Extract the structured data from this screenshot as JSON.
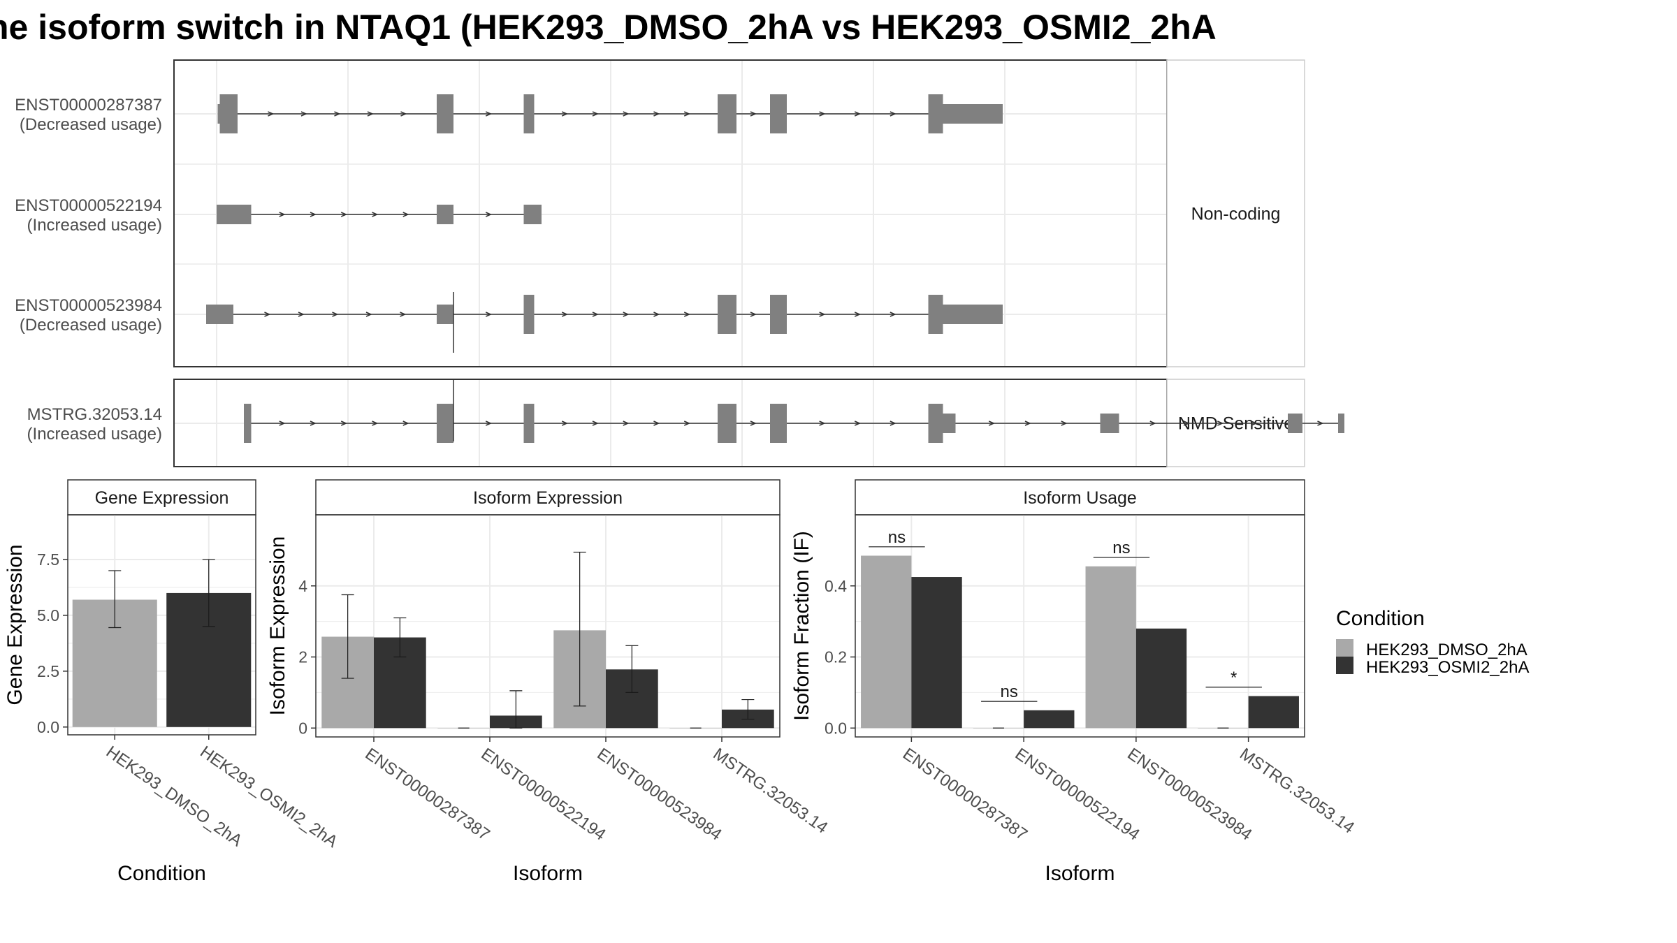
{
  "title": "he isoform switch in NTAQ1 (HEK293_DMSO_2hA vs HEK293_OSMI2_2hA",
  "colors": {
    "dmso": "#a9a9a9",
    "osmi": "#333333",
    "exon": "#808080",
    "grid": "#ebebeb",
    "frame": "#333333",
    "strip": "#ffffff"
  },
  "chart_data": [
    {
      "type": "gene-structure",
      "panels": [
        {
          "category": "Non-coding",
          "isoforms": [
            {
              "id": "ENST00000287387",
              "usage": "(Decreased usage)",
              "exons": [
                [
                  0.1,
                  0.3,
                  "thin"
                ],
                [
                  0.3,
                  2.0,
                  "thick"
                ],
                [
                  21.0,
                  22.6,
                  "thick"
                ],
                [
                  29.3,
                  30.3,
                  "thick"
                ],
                [
                  47.8,
                  49.6,
                  "thick"
                ],
                [
                  52.8,
                  54.4,
                  "thick"
                ],
                [
                  67.9,
                  69.3,
                  "thick"
                ],
                [
                  69.3,
                  75.0,
                  "thin"
                ]
              ]
            },
            {
              "id": "ENST00000522194",
              "usage": "(Increased usage)",
              "exons": [
                [
                  0.0,
                  3.3,
                  "thin"
                ],
                [
                  21.0,
                  22.6,
                  "thin"
                ],
                [
                  29.3,
                  31.0,
                  "thin"
                ]
              ]
            },
            {
              "id": "ENST00000523984",
              "usage": "(Decreased usage)",
              "exons": [
                [
                  -1.0,
                  1.6,
                  "thin"
                ],
                [
                  21.0,
                  22.6,
                  "thin"
                ],
                [
                  29.3,
                  30.3,
                  "thick"
                ],
                [
                  47.8,
                  49.6,
                  "thick"
                ],
                [
                  52.8,
                  54.4,
                  "thick"
                ],
                [
                  67.9,
                  69.3,
                  "thick"
                ],
                [
                  69.3,
                  75.0,
                  "thin"
                ]
              ]
            }
          ]
        },
        {
          "category": "NMD Sensitive",
          "isoforms": [
            {
              "id": "MSTRG.32053.14",
              "usage": "(Increased usage)",
              "exons": [
                [
                  2.6,
                  3.3,
                  "thick"
                ],
                [
                  21.0,
                  22.6,
                  "thick"
                ],
                [
                  29.3,
                  30.3,
                  "thick"
                ],
                [
                  47.8,
                  49.6,
                  "thick"
                ],
                [
                  52.8,
                  54.4,
                  "thick"
                ],
                [
                  67.9,
                  69.3,
                  "thick"
                ],
                [
                  69.3,
                  70.5,
                  "thin"
                ],
                [
                  84.3,
                  86.1,
                  "thin"
                ],
                [
                  102.2,
                  103.6,
                  "thin"
                ],
                [
                  107.0,
                  107.6,
                  "thin"
                ]
              ]
            }
          ]
        }
      ]
    },
    {
      "type": "bar",
      "title": "Gene Expression",
      "xlabel": "Condition",
      "ylabel": "Gene Expression",
      "categories": [
        "HEK293_DMSO_2hA",
        "HEK293_OSMI2_2hA"
      ],
      "values": [
        5.7,
        6.0
      ],
      "error_low": [
        4.45,
        4.5
      ],
      "error_high": [
        7.0,
        7.5
      ],
      "ylim": [
        -0.35,
        9.5
      ],
      "yticks": [
        0.0,
        2.5,
        5.0,
        7.5
      ],
      "ytick_labels": [
        "0.0",
        "2.5",
        "5.0",
        "7.5"
      ]
    },
    {
      "type": "bar",
      "title": "Isoform Expression",
      "xlabel": "Isoform",
      "ylabel": "Isoform Expression",
      "categories": [
        "ENST00000287387",
        "ENST00000522194",
        "ENST00000523984",
        "MSTRG.32053.14"
      ],
      "series": [
        {
          "name": "HEK293_DMSO_2hA",
          "values": [
            2.57,
            0.0,
            2.75,
            0.0
          ],
          "error_low": [
            1.4,
            0.0,
            0.62,
            0.0
          ],
          "error_high": [
            3.75,
            0.0,
            4.95,
            0.0
          ]
        },
        {
          "name": "HEK293_OSMI2_2hA",
          "values": [
            2.55,
            0.35,
            1.65,
            0.52
          ],
          "error_low": [
            2.0,
            0.0,
            1.0,
            0.25
          ],
          "error_high": [
            3.1,
            1.05,
            2.32,
            0.8
          ]
        }
      ],
      "ylim": [
        -0.25,
        6.0
      ],
      "yticks": [
        0,
        2,
        4
      ],
      "ytick_labels": [
        "0",
        "2",
        "4"
      ]
    },
    {
      "type": "bar",
      "title": "Isoform Usage",
      "xlabel": "Isoform",
      "ylabel": "Isoform Fraction (IF)",
      "categories": [
        "ENST00000287387",
        "ENST00000522194",
        "ENST00000523984",
        "MSTRG.32053.14"
      ],
      "series": [
        {
          "name": "HEK293_DMSO_2hA",
          "values": [
            0.485,
            0.0,
            0.455,
            0.0
          ]
        },
        {
          "name": "HEK293_OSMI2_2hA",
          "values": [
            0.425,
            0.05,
            0.28,
            0.09
          ]
        }
      ],
      "significance": [
        {
          "label": "ns",
          "y": 0.51
        },
        {
          "label": "ns",
          "y": 0.075
        },
        {
          "label": "ns",
          "y": 0.48
        },
        {
          "label": "*",
          "y": 0.115
        }
      ],
      "ylim": [
        -0.025,
        0.6
      ],
      "yticks": [
        0.0,
        0.2,
        0.4
      ],
      "ytick_labels": [
        "0.0",
        "0.2",
        "0.4"
      ]
    }
  ],
  "legend": {
    "title": "Condition",
    "items": [
      {
        "label": "HEK293_DMSO_2hA",
        "color": "#a9a9a9"
      },
      {
        "label": "HEK293_OSMI2_2hA",
        "color": "#333333"
      }
    ]
  }
}
